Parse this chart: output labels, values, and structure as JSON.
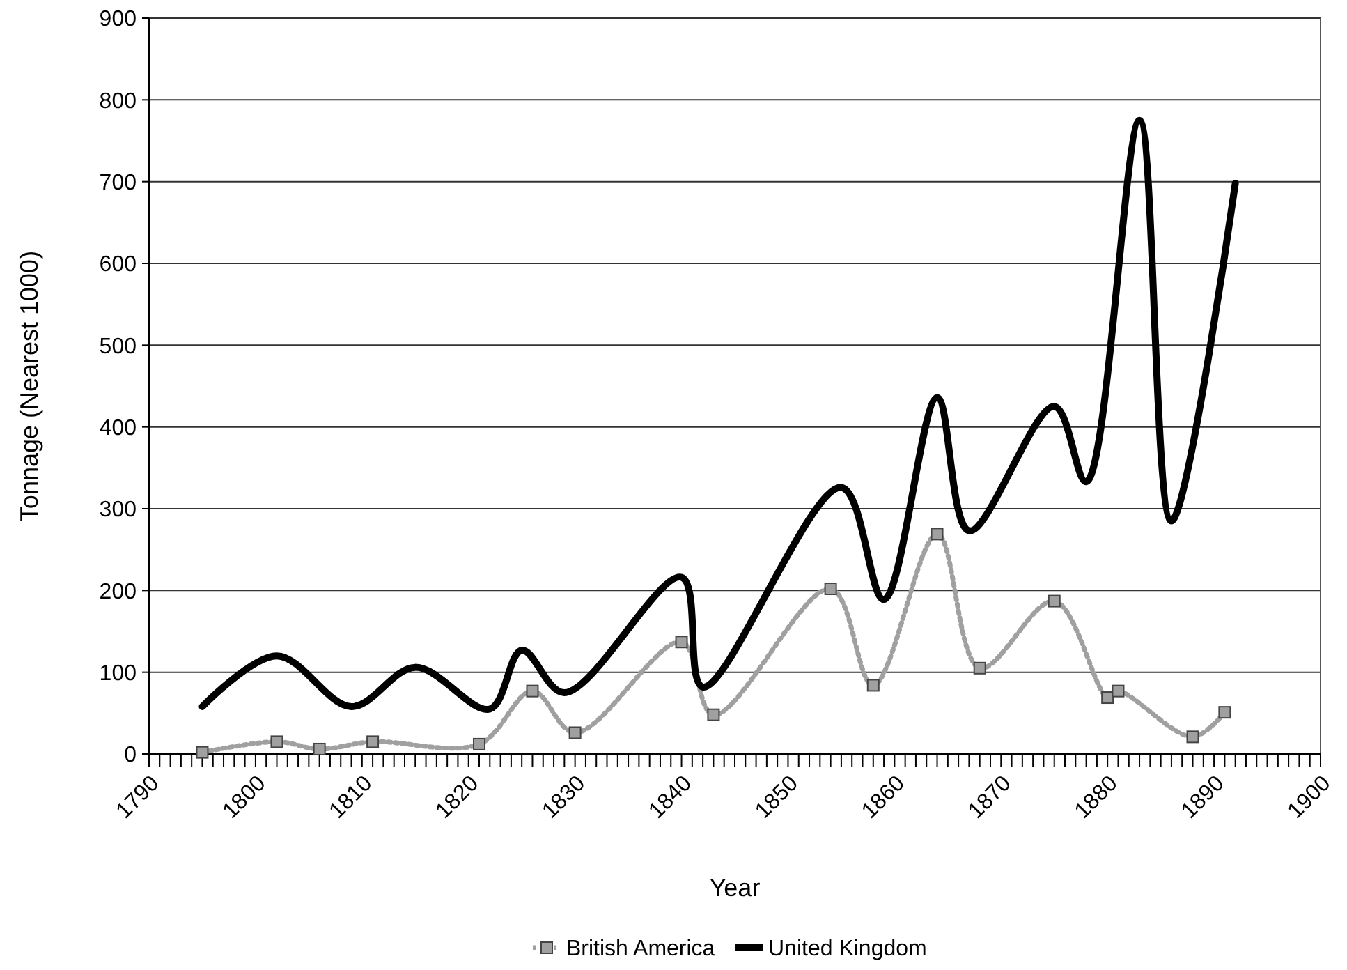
{
  "chart_data": {
    "type": "line",
    "xlabel": "Year",
    "ylabel": "Tonnage (Nearest 1000)",
    "xlim": [
      1790,
      1900
    ],
    "ylim": [
      0,
      900
    ],
    "yticks": [
      0,
      100,
      200,
      300,
      400,
      500,
      600,
      700,
      800,
      900
    ],
    "xticks": [
      1790,
      {
        "value": 1791,
        "label": null
      },
      {
        "value": 1792,
        "label": null
      },
      {
        "value": 1793,
        "label": null
      },
      {
        "value": 1794,
        "label": null
      },
      {
        "value": 1795,
        "label": null
      },
      {
        "value": 1796,
        "label": null
      },
      {
        "value": 1797,
        "label": null
      },
      {
        "value": 1798,
        "label": null
      },
      {
        "value": 1799,
        "label": null
      },
      1800,
      {
        "value": 1801,
        "label": null
      },
      {
        "value": 1802,
        "label": null
      },
      {
        "value": 1803,
        "label": null
      },
      {
        "value": 1804,
        "label": null
      },
      {
        "value": 1805,
        "label": null
      },
      {
        "value": 1806,
        "label": null
      },
      {
        "value": 1807,
        "label": null
      },
      {
        "value": 1808,
        "label": null
      },
      {
        "value": 1809,
        "label": null
      },
      1810,
      {
        "value": 1811,
        "label": null
      },
      {
        "value": 1812,
        "label": null
      },
      {
        "value": 1813,
        "label": null
      },
      {
        "value": 1814,
        "label": null
      },
      {
        "value": 1815,
        "label": null
      },
      {
        "value": 1816,
        "label": null
      },
      {
        "value": 1817,
        "label": null
      },
      {
        "value": 1818,
        "label": null
      },
      {
        "value": 1819,
        "label": null
      },
      1820,
      {
        "value": 1821,
        "label": null
      },
      {
        "value": 1822,
        "label": null
      },
      {
        "value": 1823,
        "label": null
      },
      {
        "value": 1824,
        "label": null
      },
      {
        "value": 1825,
        "label": null
      },
      {
        "value": 1826,
        "label": null
      },
      {
        "value": 1827,
        "label": null
      },
      {
        "value": 1828,
        "label": null
      },
      {
        "value": 1829,
        "label": null
      },
      1830,
      {
        "value": 1831,
        "label": null
      },
      {
        "value": 1832,
        "label": null
      },
      {
        "value": 1833,
        "label": null
      },
      {
        "value": 1834,
        "label": null
      },
      {
        "value": 1835,
        "label": null
      },
      {
        "value": 1836,
        "label": null
      },
      {
        "value": 1837,
        "label": null
      },
      {
        "value": 1838,
        "label": null
      },
      {
        "value": 1839,
        "label": null
      },
      1840,
      {
        "value": 1841,
        "label": null
      },
      {
        "value": 1842,
        "label": null
      },
      {
        "value": 1843,
        "label": null
      },
      {
        "value": 1844,
        "label": null
      },
      {
        "value": 1845,
        "label": null
      },
      {
        "value": 1846,
        "label": null
      },
      {
        "value": 1847,
        "label": null
      },
      {
        "value": 1848,
        "label": null
      },
      {
        "value": 1849,
        "label": null
      },
      1850,
      {
        "value": 1851,
        "label": null
      },
      {
        "value": 1852,
        "label": null
      },
      {
        "value": 1853,
        "label": null
      },
      {
        "value": 1854,
        "label": null
      },
      {
        "value": 1855,
        "label": null
      },
      {
        "value": 1856,
        "label": null
      },
      {
        "value": 1857,
        "label": null
      },
      {
        "value": 1858,
        "label": null
      },
      {
        "value": 1859,
        "label": null
      },
      1860,
      {
        "value": 1861,
        "label": null
      },
      {
        "value": 1862,
        "label": null
      },
      {
        "value": 1863,
        "label": null
      },
      {
        "value": 1864,
        "label": null
      },
      {
        "value": 1865,
        "label": null
      },
      {
        "value": 1866,
        "label": null
      },
      {
        "value": 1867,
        "label": null
      },
      {
        "value": 1868,
        "label": null
      },
      {
        "value": 1869,
        "label": null
      },
      1870,
      {
        "value": 1871,
        "label": null
      },
      {
        "value": 1872,
        "label": null
      },
      {
        "value": 1873,
        "label": null
      },
      {
        "value": 1874,
        "label": null
      },
      {
        "value": 1875,
        "label": null
      },
      {
        "value": 1876,
        "label": null
      },
      {
        "value": 1877,
        "label": null
      },
      {
        "value": 1878,
        "label": null
      },
      {
        "value": 1879,
        "label": null
      },
      1880,
      {
        "value": 1881,
        "label": null
      },
      {
        "value": 1882,
        "label": null
      },
      {
        "value": 1883,
        "label": null
      },
      {
        "value": 1884,
        "label": null
      },
      {
        "value": 1885,
        "label": null
      },
      {
        "value": 1886,
        "label": null
      },
      {
        "value": 1887,
        "label": null
      },
      {
        "value": 1888,
        "label": null
      },
      {
        "value": 1889,
        "label": null
      },
      1890,
      {
        "value": 1891,
        "label": null
      },
      {
        "value": 1892,
        "label": null
      },
      {
        "value": 1893,
        "label": null
      },
      {
        "value": 1894,
        "label": null
      },
      {
        "value": 1895,
        "label": null
      },
      {
        "value": 1896,
        "label": null
      },
      {
        "value": 1897,
        "label": null
      },
      {
        "value": 1898,
        "label": null
      },
      {
        "value": 1899,
        "label": null
      },
      1900
    ],
    "grid": "y",
    "legend": "bottom",
    "series": [
      {
        "name": "British America",
        "color": "#a0a0a0",
        "marker": "square",
        "line_style": "dotted",
        "x": [
          1795,
          1802,
          1806,
          1811,
          1821,
          1826,
          1830,
          1840,
          1843,
          1854,
          1858,
          1864,
          1868,
          1875,
          1880,
          1881,
          1888,
          1891
        ],
        "values": [
          2,
          15,
          6,
          15,
          12,
          77,
          26,
          137,
          48,
          202,
          84,
          269,
          105,
          187,
          69,
          77,
          21,
          51
        ]
      },
      {
        "name": "United Kingdom",
        "color": "#000000",
        "marker": "none",
        "line_style": "solid",
        "x": [
          1795,
          1802,
          1809,
          1815,
          1822,
          1825,
          1829,
          1840,
          1842,
          1855,
          1859,
          1864,
          1867,
          1875,
          1878,
          1883,
          1886,
          1892
        ],
        "values": [
          58,
          120,
          58,
          106,
          55,
          127,
          75,
          216,
          82,
          326,
          189,
          436,
          273,
          425,
          333,
          775,
          285,
          698
        ]
      }
    ]
  }
}
